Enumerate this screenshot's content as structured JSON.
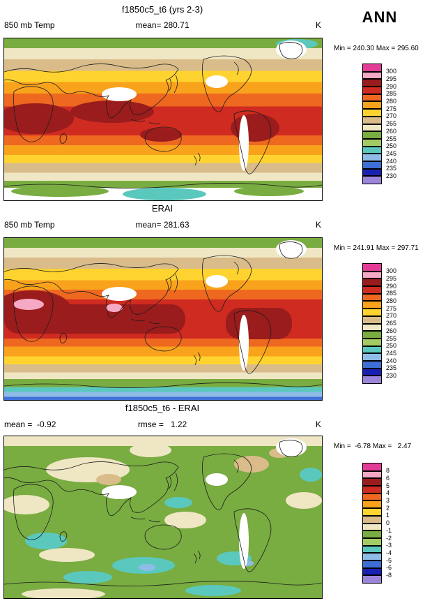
{
  "header": {
    "season": "ANN"
  },
  "panels": [
    {
      "title": "f1850c5_t6 (yrs 2-3)",
      "left_label": "850 mb Temp",
      "center_label": "mean= 280.71",
      "units": "K",
      "stats": "Min = 240.30 Max = 295.60",
      "colorbar": {
        "labels": [
          "300",
          "295",
          "290",
          "285",
          "280",
          "275",
          "270",
          "265",
          "260",
          "255",
          "250",
          "245",
          "240",
          "235",
          "230"
        ],
        "colors": [
          "#E23C96",
          "#F5A9C4",
          "#9B1C1C",
          "#CF2B20",
          "#EE6820",
          "#F9A21C",
          "#FFD32F",
          "#D9BC8A",
          "#EFE6C4",
          "#79AC41",
          "#A3CB63",
          "#5BC8BE",
          "#8FBCE6",
          "#3D6FD7",
          "#1A1FB4",
          "#9C84DC"
        ]
      }
    },
    {
      "title": "ERAI",
      "left_label": "850 mb Temp",
      "center_label": "mean= 281.63",
      "units": "K",
      "stats": "Min = 241.91 Max = 297.71",
      "colorbar": {
        "labels": [
          "300",
          "295",
          "290",
          "285",
          "280",
          "275",
          "270",
          "265",
          "260",
          "255",
          "250",
          "245",
          "240",
          "235",
          "230"
        ],
        "colors": [
          "#E23C96",
          "#F5A9C4",
          "#9B1C1C",
          "#CF2B20",
          "#EE6820",
          "#F9A21C",
          "#FFD32F",
          "#D9BC8A",
          "#EFE6C4",
          "#79AC41",
          "#A3CB63",
          "#5BC8BE",
          "#8FBCE6",
          "#3D6FD7",
          "#1A1FB4",
          "#9C84DC"
        ]
      }
    },
    {
      "title": "f1850c5_t6 - ERAI",
      "left_label": "mean =  -0.92",
      "center_label": "rmse =   1.22",
      "units": "K",
      "stats": "Min =  -6.78 Max =   2.47",
      "colorbar": {
        "labels": [
          "8",
          "6",
          "5",
          "4",
          "3",
          "2",
          "1",
          "0",
          "-1",
          "-2",
          "-3",
          "-4",
          "-5",
          "-6",
          "-8"
        ],
        "colors": [
          "#E23C96",
          "#F5A9C4",
          "#9B1C1C",
          "#CF2B20",
          "#EE6820",
          "#F9A21C",
          "#FFD32F",
          "#D9BC8A",
          "#EFE6C4",
          "#79AC41",
          "#A3CB63",
          "#5BC8BE",
          "#8FBCE6",
          "#3D6FD7",
          "#1A1FB4",
          "#9C84DC"
        ]
      }
    }
  ],
  "chart_data": [
    {
      "type": "heatmap",
      "title": "f1850c5_t6 (yrs 2-3)",
      "variable": "850 mb Temp",
      "season": "ANN",
      "units": "K",
      "mean": 280.71,
      "min": 240.3,
      "max": 295.6,
      "contour_levels": [
        230,
        235,
        240,
        245,
        250,
        255,
        260,
        265,
        270,
        275,
        280,
        285,
        290,
        295,
        300
      ],
      "palette_top_to_bottom": [
        "#E23C96",
        "#F5A9C4",
        "#9B1C1C",
        "#CF2B20",
        "#EE6820",
        "#F9A21C",
        "#FFD32F",
        "#D9BC8A",
        "#EFE6C4",
        "#79AC41",
        "#A3CB63",
        "#5BC8BE",
        "#8FBCE6",
        "#3D6FD7",
        "#1A1FB4",
        "#9C84DC"
      ],
      "layout": "global filled-contour world map, white areas = missing data over high terrain"
    },
    {
      "type": "heatmap",
      "title": "ERAI",
      "variable": "850 mb Temp",
      "season": "ANN",
      "units": "K",
      "mean": 281.63,
      "min": 241.91,
      "max": 297.71,
      "contour_levels": [
        230,
        235,
        240,
        245,
        250,
        255,
        260,
        265,
        270,
        275,
        280,
        285,
        290,
        295,
        300
      ],
      "palette_top_to_bottom": [
        "#E23C96",
        "#F5A9C4",
        "#9B1C1C",
        "#CF2B20",
        "#EE6820",
        "#F9A21C",
        "#FFD32F",
        "#D9BC8A",
        "#EFE6C4",
        "#79AC41",
        "#A3CB63",
        "#5BC8BE",
        "#8FBCE6",
        "#3D6FD7",
        "#1A1FB4",
        "#9C84DC"
      ],
      "layout": "global filled-contour world map"
    },
    {
      "type": "heatmap",
      "title": "f1850c5_t6 - ERAI",
      "variable": "850 mb Temp difference",
      "season": "ANN",
      "units": "K",
      "mean": -0.92,
      "rmse": 1.22,
      "min": -6.78,
      "max": 2.47,
      "contour_levels": [
        -8,
        -6,
        -5,
        -4,
        -3,
        -2,
        -1,
        0,
        1,
        2,
        3,
        4,
        5,
        6,
        8
      ],
      "palette_top_to_bottom": [
        "#E23C96",
        "#F5A9C4",
        "#9B1C1C",
        "#CF2B20",
        "#EE6820",
        "#F9A21C",
        "#FFD32F",
        "#D9BC8A",
        "#EFE6C4",
        "#79AC41",
        "#A3CB63",
        "#5BC8BE",
        "#8FBCE6",
        "#3D6FD7",
        "#1A1FB4",
        "#9C84DC"
      ],
      "layout": "global filled-contour difference map, mostly -2..0 K (green/beige), cool teal patches, white = missing over high terrain"
    }
  ]
}
